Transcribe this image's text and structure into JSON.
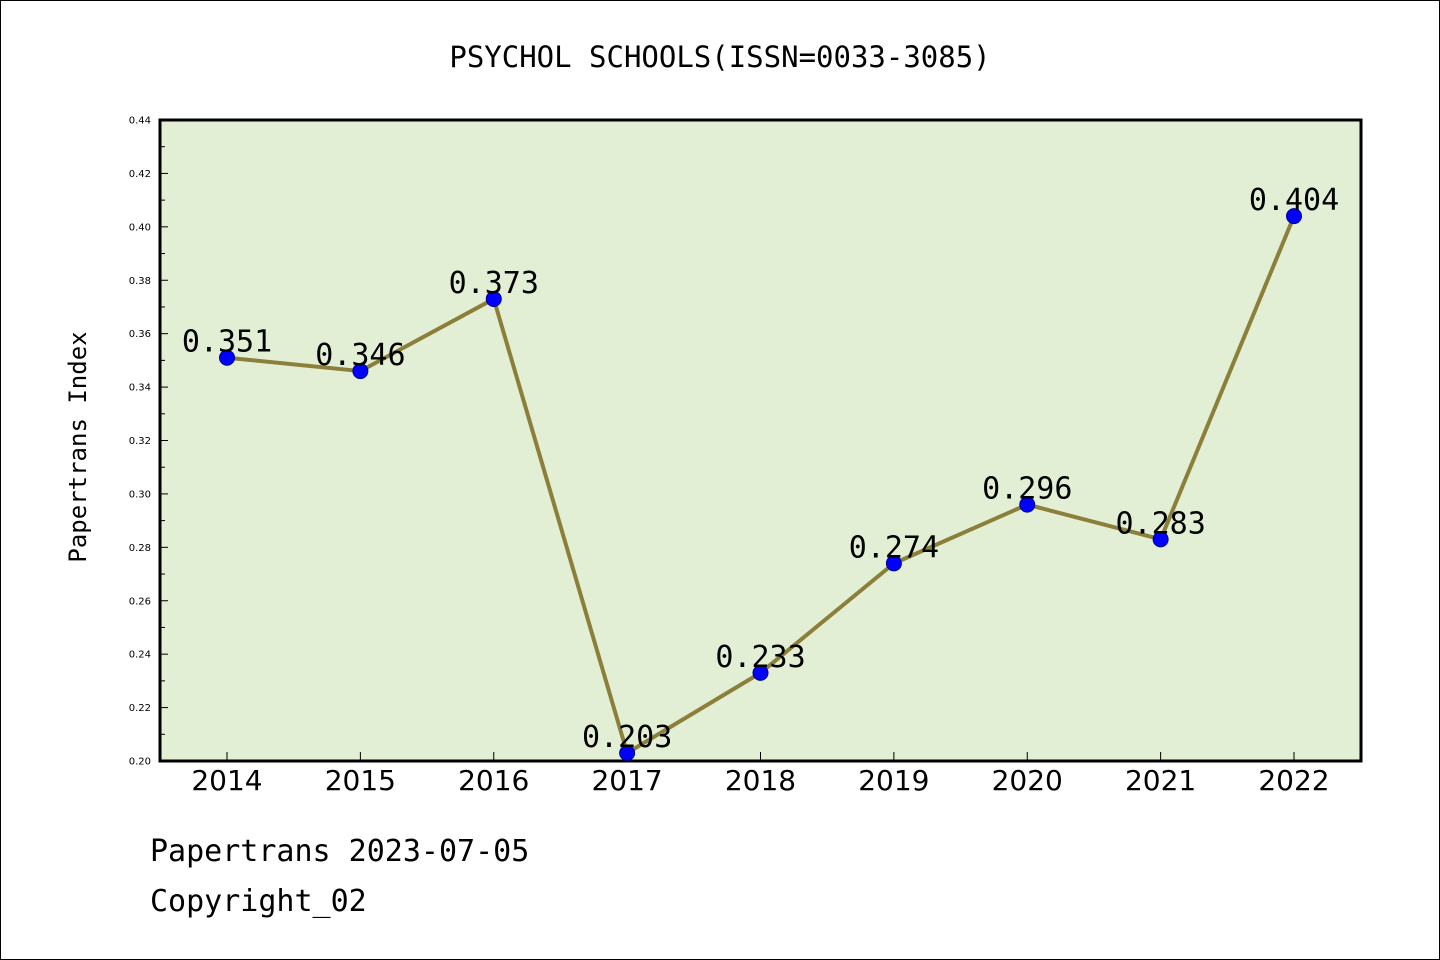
{
  "colors": {
    "plot_background": "#e2efd5",
    "line": "#8b7f3a",
    "marker": "#0000ff",
    "marker_edge": "#00008b",
    "text": "#000000"
  },
  "chart_data": {
    "type": "line",
    "title": "PSYCHOL SCHOOLS(ISSN=0033-3085)",
    "xlabel": "",
    "ylabel": "Papertrans Index",
    "categories": [
      "2014",
      "2015",
      "2016",
      "2017",
      "2018",
      "2019",
      "2020",
      "2021",
      "2022"
    ],
    "series": [
      {
        "values": [
          0.351,
          0.346,
          0.373,
          0.203,
          0.233,
          0.274,
          0.296,
          0.283,
          0.404
        ]
      }
    ],
    "data_labels": [
      "0.351",
      "0.346",
      "0.373",
      "0.203",
      "0.233",
      "0.274",
      "0.296",
      "0.283",
      "0.404"
    ],
    "ylim": [
      0.2,
      0.44
    ],
    "yticks": [
      "0.20",
      "0.22",
      "0.24",
      "0.26",
      "0.28",
      "0.30",
      "0.32",
      "0.34",
      "0.36",
      "0.38",
      "0.40",
      "0.42",
      "0.44"
    ],
    "grid": false,
    "legend": "none"
  },
  "footer": {
    "brand_date": "Papertrans 2023-07-05",
    "copyright": "Copyright_02"
  }
}
